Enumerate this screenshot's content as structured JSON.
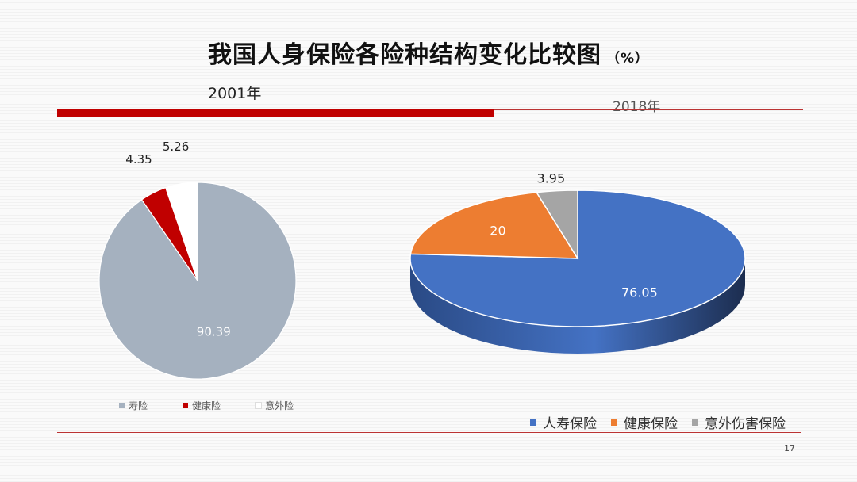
{
  "title": "我国人身保险各险种结构变化比较图",
  "title_unit": "（%）",
  "page_number": "17",
  "chart_data": [
    {
      "type": "pie",
      "label": "2001年",
      "categories": [
        "寿险",
        "健康险",
        "意外险"
      ],
      "values": [
        90.39,
        4.35,
        5.26
      ],
      "value_labels": [
        "90.39",
        "4.35",
        "5.26"
      ],
      "colors": [
        "#a5b1bf",
        "#c00000",
        "#ffffff"
      ],
      "legend_position": "bottom-left"
    },
    {
      "type": "pie",
      "style": "3d",
      "label": "2018年",
      "categories": [
        "人寿保险",
        "健康保险",
        "意外伤害保险"
      ],
      "values": [
        76.05,
        20,
        3.95
      ],
      "value_labels": [
        "76.05",
        "20",
        "3.95"
      ],
      "colors": [
        "#4472c4",
        "#ed7d31",
        "#a5a5a5"
      ],
      "side_colors": [
        "#2a4a85",
        "#b35a1f",
        "#777777"
      ],
      "legend_position": "bottom-right"
    }
  ]
}
